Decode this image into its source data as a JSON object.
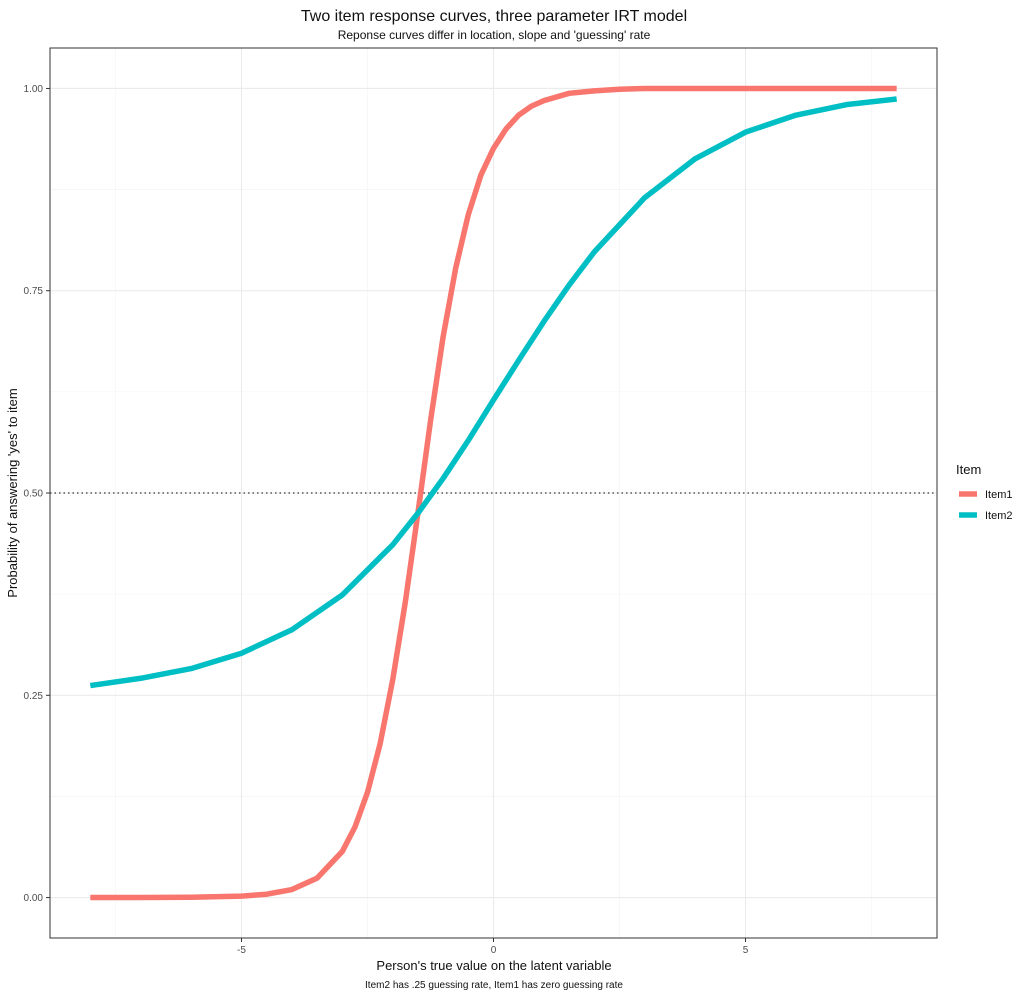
{
  "chart_data": {
    "type": "line",
    "title": "Two item response curves, three parameter IRT model",
    "subtitle": "Reponse curves differ in location, slope and 'guessing' rate",
    "xlabel": "Person's true value on the latent variable",
    "ylabel": "Probability of answering 'yes' to item",
    "caption": "Item2 has .25 guessing rate, Item1 has zero guessing rate",
    "xlim": [
      -8.8,
      8.8
    ],
    "ylim": [
      -0.05,
      1.05
    ],
    "x_ticks": [
      -5,
      0,
      5
    ],
    "x_tick_labels": [
      "-5",
      "0",
      "5"
    ],
    "y_ticks": [
      0,
      0.25,
      0.5,
      0.75,
      1
    ],
    "y_tick_labels": [
      "0.00",
      "0.25",
      "0.50",
      "0.75",
      "1.00"
    ],
    "reference_line": {
      "y": 0.5,
      "style": "dotted"
    },
    "grid": true,
    "legend": {
      "title": "Item",
      "position": "right"
    },
    "series": [
      {
        "name": "Item1",
        "color": "#F8766D",
        "x": [
          -8,
          -7,
          -6,
          -5,
          -4.5,
          -4,
          -3.5,
          -3,
          -2.75,
          -2.5,
          -2.25,
          -2,
          -1.75,
          -1.5,
          -1.25,
          -1,
          -0.75,
          -0.5,
          -0.25,
          0,
          0.25,
          0.5,
          0.75,
          1,
          1.5,
          2,
          2.5,
          3,
          4,
          5,
          6,
          7,
          8
        ],
        "y": [
          0.0,
          0.0,
          0.0003,
          0.0018,
          0.0041,
          0.0099,
          0.024,
          0.057,
          0.087,
          0.13,
          0.19,
          0.269,
          0.365,
          0.475,
          0.589,
          0.693,
          0.778,
          0.844,
          0.893,
          0.926,
          0.95,
          0.967,
          0.978,
          0.985,
          0.994,
          0.997,
          0.999,
          1.0,
          1.0,
          1.0,
          1.0,
          1.0,
          1.0
        ]
      },
      {
        "name": "Item2",
        "color": "#00BFC4",
        "x": [
          -8,
          -7,
          -6,
          -5,
          -4,
          -3,
          -2,
          -1.5,
          -1,
          -0.5,
          0,
          0.5,
          1,
          1.5,
          2,
          3,
          4,
          5,
          6,
          7,
          8
        ],
        "y": [
          0.262,
          0.271,
          0.283,
          0.302,
          0.331,
          0.374,
          0.436,
          0.475,
          0.518,
          0.565,
          0.615,
          0.664,
          0.712,
          0.757,
          0.798,
          0.865,
          0.913,
          0.946,
          0.967,
          0.98,
          0.987
        ]
      }
    ]
  }
}
